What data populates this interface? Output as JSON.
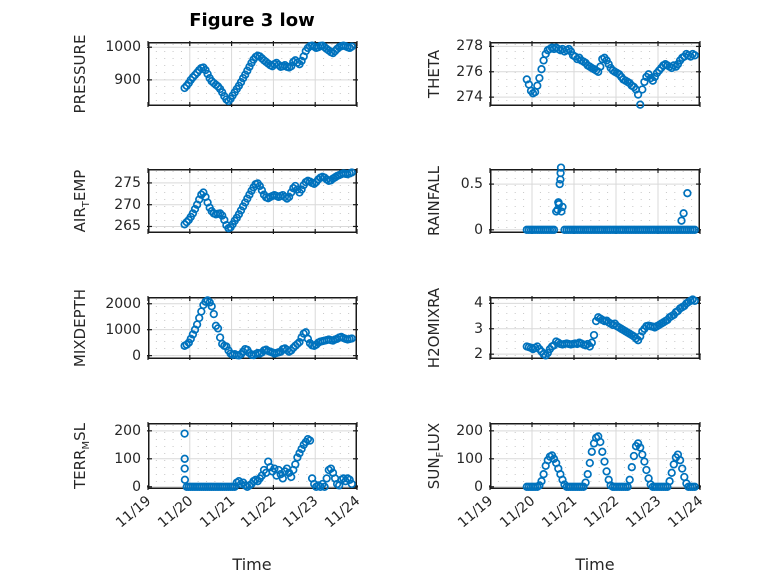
{
  "title": "Figure 3 low",
  "xlabel": "Time",
  "chart_data": {
    "type": "scatter",
    "marker": {
      "shape": "open-circle",
      "color": "#0072BD"
    },
    "grid": {
      "major": true,
      "minor_dotted": true
    },
    "x_axis": {
      "label": "Time",
      "tick_positions": [
        0,
        1,
        2,
        3,
        4,
        5
      ],
      "tick_labels": [
        "11/19",
        "11/20",
        "11/21",
        "11/22",
        "11/23",
        "11/24"
      ],
      "xlim": [
        0,
        5
      ]
    },
    "t0": 0.875,
    "dt": 0.05,
    "subplots": [
      {
        "name": "PRESSURE",
        "col": 0,
        "row": 0,
        "label_parts": [
          {
            "text": "PRESSURE"
          }
        ],
        "ylim": [
          820,
          1016
        ],
        "yticks": [
          900,
          1000
        ],
        "y": [
          875,
          882,
          890,
          900,
          908,
          915,
          922,
          930,
          936,
          938,
          930,
          918,
          905,
          896,
          890,
          885,
          880,
          872,
          862,
          850,
          840,
          835,
          842,
          852,
          862,
          872,
          882,
          893,
          905,
          916,
          928,
          940,
          952,
          962,
          970,
          974,
          972,
          966,
          960,
          955,
          950,
          945,
          942,
          948,
          952,
          946,
          940,
          942,
          945,
          940,
          938,
          942,
          955,
          960,
          953,
          948,
          958,
          972,
          988,
          998,
          1003,
          1005,
          1002,
          998,
          1000,
          1004,
          1005,
          1000,
          995,
          990,
          985,
          982,
          988,
          995,
          1000,
          1003,
          1005,
          1003,
          1000,
          998,
          1002
        ]
      },
      {
        "name": "THETA",
        "col": 1,
        "row": 0,
        "label_parts": [
          {
            "text": "THETA"
          }
        ],
        "ylim": [
          273.3,
          278.35
        ],
        "yticks": [
          274,
          276,
          278
        ],
        "y": [
          275.4,
          275.0,
          274.5,
          274.3,
          274.4,
          274.9,
          275.5,
          276.2,
          276.9,
          277.4,
          277.7,
          277.8,
          277.9,
          277.8,
          277.9,
          277.8,
          277.7,
          277.8,
          277.6,
          277.7,
          277.8,
          277.6,
          277.3,
          277.2,
          277.0,
          277.1,
          276.9,
          276.8,
          276.7,
          276.5,
          276.4,
          276.3,
          276.2,
          276.1,
          276.0,
          276.4,
          277.0,
          277.1,
          276.9,
          276.6,
          276.3,
          276.1,
          276.0,
          275.9,
          275.8,
          275.6,
          275.4,
          275.3,
          275.2,
          275.1,
          274.9,
          274.8,
          274.6,
          274.2,
          273.4,
          274.6,
          275.2,
          275.6,
          275.8,
          275.5,
          275.3,
          275.6,
          275.9,
          276.1,
          276.3,
          276.5,
          276.6,
          276.5,
          276.4,
          276.3,
          276.5,
          276.4,
          276.6,
          276.9,
          277.1,
          277.2,
          277.4,
          277.3,
          277.2,
          277.4,
          277.3
        ]
      },
      {
        "name": "AIR_TEMP",
        "col": 0,
        "row": 1,
        "label_parts": [
          {
            "text": "AIR"
          },
          {
            "text": "T",
            "sub": true
          },
          {
            "text": "EMP"
          }
        ],
        "ylim": [
          263.5,
          278.2
        ],
        "yticks": [
          265,
          270,
          275
        ],
        "y": [
          265.5,
          266.0,
          266.5,
          267.2,
          268.0,
          269.0,
          270.0,
          271.2,
          272.3,
          272.8,
          271.8,
          270.5,
          269.3,
          268.5,
          268.0,
          267.8,
          267.9,
          268.0,
          267.5,
          266.5,
          265.3,
          264.6,
          264.8,
          265.5,
          266.3,
          267.0,
          267.8,
          268.7,
          269.6,
          270.5,
          271.4,
          272.3,
          273.2,
          274.0,
          274.7,
          274.9,
          274.3,
          273.3,
          272.3,
          271.7,
          271.5,
          271.8,
          272.0,
          272.2,
          272.0,
          271.8,
          272.0,
          272.2,
          271.8,
          271.4,
          271.8,
          272.8,
          273.8,
          274.3,
          273.5,
          272.8,
          273.5,
          274.5,
          275.2,
          275.5,
          275.3,
          275.0,
          274.8,
          275.2,
          275.8,
          276.2,
          276.4,
          276.2,
          275.8,
          275.5,
          275.6,
          276.0,
          276.3,
          276.6,
          276.8,
          277.0,
          277.2,
          277.1,
          277.0,
          277.2,
          277.4
        ]
      },
      {
        "name": "RAINFALL",
        "col": 1,
        "row": 1,
        "label_parts": [
          {
            "text": "RAINFALL"
          }
        ],
        "ylim": [
          -0.035,
          0.665
        ],
        "yticks": [
          0,
          0.5
        ],
        "y": [
          0,
          0,
          0,
          0,
          0,
          0,
          0,
          0,
          0,
          0,
          0,
          0,
          0,
          0,
          0.2,
          0.3,
          0.55,
          0.25,
          0,
          0,
          0,
          0,
          0,
          0,
          0,
          0,
          0,
          0,
          0,
          0,
          0,
          0,
          0,
          0,
          0,
          0,
          0,
          0,
          0,
          0,
          0,
          0,
          0,
          0,
          0,
          0,
          0,
          0,
          0,
          0,
          0,
          0,
          0,
          0,
          0,
          0,
          0,
          0,
          0,
          0,
          0,
          0,
          0,
          0,
          0,
          0,
          0,
          0,
          0,
          0,
          0,
          0,
          0,
          0,
          0,
          0,
          0,
          0,
          0,
          0,
          0
        ],
        "extra": [
          [
            1.61,
            0.22
          ],
          [
            1.63,
            0.3
          ],
          [
            1.64,
            0.28
          ],
          [
            1.66,
            0.5
          ],
          [
            1.68,
            0.62
          ],
          [
            1.69,
            0.68
          ],
          [
            1.7,
            0.2
          ],
          [
            4.56,
            0.1
          ],
          [
            4.61,
            0.18
          ],
          [
            4.7,
            0.4
          ]
        ]
      },
      {
        "name": "MIXDEPTH",
        "col": 0,
        "row": 2,
        "label_parts": [
          {
            "text": "MIXDEPTH"
          }
        ],
        "ylim": [
          -130,
          2260
        ],
        "yticks": [
          0,
          1000,
          2000
        ],
        "y": [
          380,
          420,
          500,
          650,
          820,
          1000,
          1200,
          1450,
          1700,
          1950,
          2080,
          2130,
          2050,
          1900,
          1600,
          1150,
          1050,
          700,
          450,
          380,
          350,
          200,
          80,
          30,
          60,
          20,
          10,
          50,
          150,
          250,
          220,
          100,
          30,
          20,
          60,
          100,
          80,
          120,
          200,
          230,
          180,
          150,
          120,
          80,
          100,
          130,
          150,
          250,
          280,
          220,
          150,
          200,
          300,
          380,
          450,
          520,
          700,
          850,
          900,
          650,
          480,
          400,
          380,
          420,
          500,
          540,
          560,
          580,
          600,
          620,
          600,
          580,
          620,
          650,
          700,
          720,
          680,
          650,
          620,
          640,
          660
        ]
      },
      {
        "name": "H2OMIXRA",
        "col": 1,
        "row": 2,
        "label_parts": [
          {
            "text": "H2OMIXRA"
          }
        ],
        "ylim": [
          1.81,
          4.25
        ],
        "yticks": [
          2,
          3,
          4
        ],
        "y": [
          2.3,
          2.28,
          2.25,
          2.2,
          2.25,
          2.3,
          2.2,
          2.1,
          2.0,
          1.95,
          2.05,
          2.2,
          2.3,
          2.35,
          2.5,
          2.45,
          2.4,
          2.38,
          2.4,
          2.42,
          2.4,
          2.38,
          2.4,
          2.42,
          2.4,
          2.45,
          2.42,
          2.38,
          2.35,
          2.4,
          2.3,
          2.45,
          2.75,
          3.3,
          3.45,
          3.4,
          3.35,
          3.3,
          3.32,
          3.25,
          3.2,
          3.15,
          3.2,
          3.1,
          3.05,
          3.0,
          2.95,
          2.9,
          2.85,
          2.8,
          2.75,
          2.7,
          2.62,
          2.55,
          2.7,
          2.9,
          3.0,
          3.1,
          3.12,
          3.1,
          3.08,
          3.05,
          3.1,
          3.15,
          3.2,
          3.25,
          3.3,
          3.35,
          3.45,
          3.5,
          3.55,
          3.65,
          3.7,
          3.8,
          3.85,
          3.9,
          4.0,
          4.05,
          4.1,
          4.15,
          4.1
        ]
      },
      {
        "name": "TERR_MSL",
        "col": 0,
        "row": 3,
        "label_parts": [
          {
            "text": "TERR"
          },
          {
            "text": "M",
            "sub": true
          },
          {
            "text": "SL"
          }
        ],
        "ylim": [
          -8,
          228
        ],
        "yticks": [
          0,
          100,
          200
        ],
        "y": [
          190,
          0,
          0,
          0,
          0,
          0,
          0,
          0,
          0,
          0,
          0,
          0,
          0,
          0,
          0,
          0,
          0,
          0,
          0,
          0,
          0,
          0,
          0,
          0,
          0,
          15,
          20,
          10,
          15,
          5,
          0,
          5,
          10,
          20,
          25,
          20,
          30,
          40,
          60,
          50,
          90,
          70,
          55,
          65,
          40,
          60,
          45,
          30,
          55,
          65,
          50,
          35,
          60,
          80,
          105,
          120,
          135,
          150,
          160,
          170,
          165,
          30,
          10,
          0,
          5,
          0,
          10,
          0,
          30,
          60,
          65,
          50,
          30,
          10,
          5,
          25,
          30,
          20,
          30,
          25,
          10
        ],
        "extra": [
          [
            0.878,
            100
          ],
          [
            0.878,
            65
          ],
          [
            0.882,
            25
          ]
        ]
      },
      {
        "name": "SUN_FLUX",
        "col": 1,
        "row": 3,
        "label_parts": [
          {
            "text": "SUN"
          },
          {
            "text": "F",
            "sub": true
          },
          {
            "text": "LUX"
          }
        ],
        "ylim": [
          -8,
          228
        ],
        "yticks": [
          0,
          100,
          200
        ],
        "y": [
          0,
          0,
          0,
          0,
          0,
          0,
          5,
          20,
          45,
          75,
          95,
          108,
          112,
          100,
          85,
          65,
          45,
          25,
          8,
          0,
          0,
          0,
          0,
          0,
          0,
          0,
          0,
          0,
          15,
          45,
          85,
          125,
          155,
          175,
          180,
          160,
          125,
          90,
          55,
          25,
          5,
          0,
          0,
          0,
          0,
          0,
          0,
          0,
          0,
          25,
          70,
          110,
          145,
          155,
          140,
          115,
          90,
          60,
          30,
          8,
          0,
          0,
          0,
          0,
          0,
          0,
          0,
          0,
          20,
          50,
          80,
          105,
          115,
          95,
          65,
          35,
          12,
          0,
          0,
          0,
          0
        ]
      }
    ]
  }
}
